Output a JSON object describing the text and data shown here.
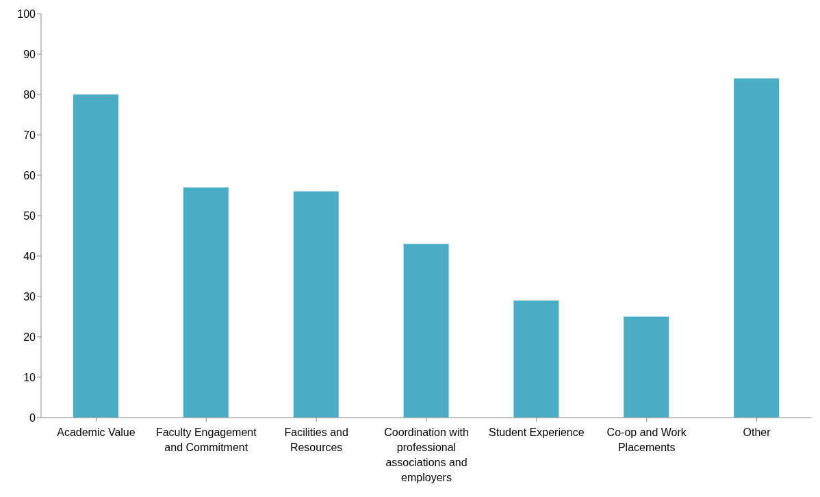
{
  "chart_data": {
    "type": "bar",
    "categories": [
      "Academic Value",
      "Faculty Engagement and Commitment",
      "Facilities and Resources",
      "Coordination with professional associations and employers",
      "Student Experience",
      "Co-op and Work Placements",
      "Other"
    ],
    "values": [
      80,
      57,
      56,
      43,
      29,
      25,
      84
    ],
    "color": "#4bacc6",
    "ylim": [
      0,
      100
    ],
    "yticks": [
      0,
      10,
      20,
      30,
      40,
      50,
      60,
      70,
      80,
      90,
      100
    ],
    "grid": false,
    "legend": false
  }
}
